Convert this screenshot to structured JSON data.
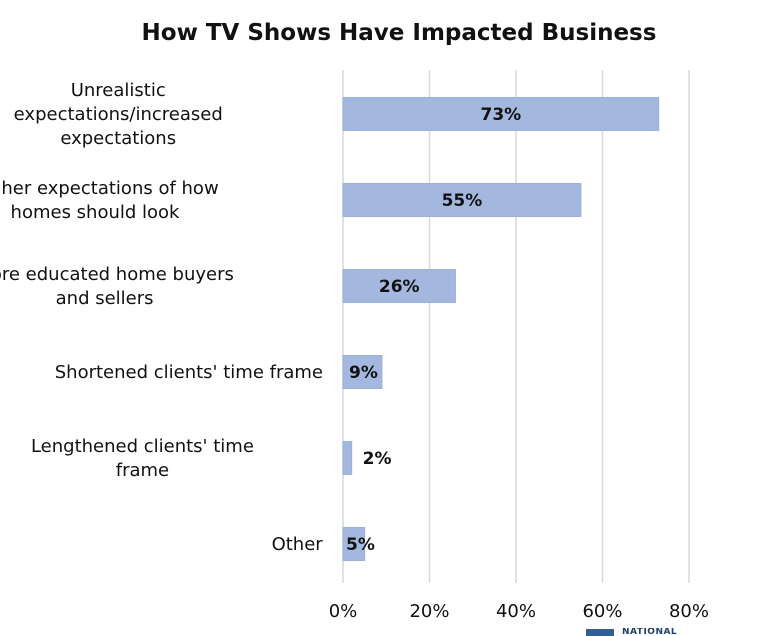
{
  "chart_data": {
    "type": "bar",
    "orientation": "horizontal",
    "title": "How TV Shows Have Impacted Business",
    "categories": [
      [
        "Unrealistic",
        "expectations/increased",
        "expectations"
      ],
      [
        "Higher expectations of how",
        "homes should look"
      ],
      [
        "More educated home buyers",
        "and sellers"
      ],
      [
        "Shortened clients' time frame"
      ],
      [
        "Lengthened clients' time",
        "frame"
      ],
      [
        "Other"
      ]
    ],
    "values": [
      73,
      55,
      26,
      9,
      2,
      5
    ],
    "data_labels": [
      "73%",
      "55%",
      "26%",
      "9%",
      "2%",
      "5%"
    ],
    "xlim": [
      0,
      80
    ],
    "xticks": [
      0,
      20,
      40,
      60,
      80
    ],
    "xtick_labels": [
      "0%",
      "20%",
      "40%",
      "60%",
      "80%"
    ],
    "xlabel": "",
    "ylabel": "",
    "grid": true,
    "bar_color": "#a4b8df"
  },
  "footer": {
    "text": "NATIONAL",
    "color": "#2f5f99"
  }
}
